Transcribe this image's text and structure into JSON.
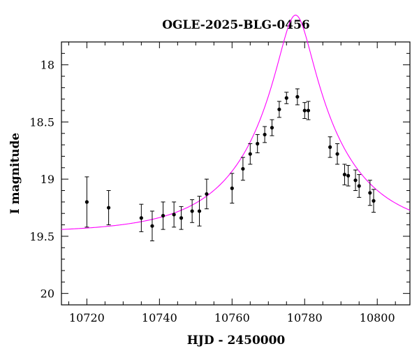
{
  "chart_data": {
    "type": "scatter",
    "title": "OGLE-2025-BLG-0456",
    "xlabel": "HJD - 2450000",
    "ylabel": "I magnitude",
    "xlim": [
      10713,
      10809
    ],
    "ylim": [
      20.1,
      17.8
    ],
    "y_inverted": true,
    "xticks": [
      10720,
      10740,
      10760,
      10780,
      10800
    ],
    "yticks": [
      18,
      18.5,
      19,
      19.5,
      20
    ],
    "ytick_labels": [
      "18",
      "18.5",
      "19",
      "19.5",
      "20"
    ],
    "grid": false,
    "series": [
      {
        "kind": "points-with-errorbars",
        "color": "#000000",
        "points": [
          {
            "x": 10720,
            "y": 19.2,
            "err": 0.22
          },
          {
            "x": 10726,
            "y": 19.25,
            "err": 0.15
          },
          {
            "x": 10735,
            "y": 19.34,
            "err": 0.12
          },
          {
            "x": 10738,
            "y": 19.41,
            "err": 0.13
          },
          {
            "x": 10741,
            "y": 19.32,
            "err": 0.12
          },
          {
            "x": 10744,
            "y": 19.31,
            "err": 0.11
          },
          {
            "x": 10746,
            "y": 19.34,
            "err": 0.1
          },
          {
            "x": 10749,
            "y": 19.28,
            "err": 0.1
          },
          {
            "x": 10751,
            "y": 19.28,
            "err": 0.13
          },
          {
            "x": 10753,
            "y": 19.13,
            "err": 0.13
          },
          {
            "x": 10760,
            "y": 19.08,
            "err": 0.13
          },
          {
            "x": 10763,
            "y": 18.91,
            "err": 0.1
          },
          {
            "x": 10765,
            "y": 18.78,
            "err": 0.09
          },
          {
            "x": 10767,
            "y": 18.69,
            "err": 0.08
          },
          {
            "x": 10769,
            "y": 18.61,
            "err": 0.07
          },
          {
            "x": 10771,
            "y": 18.55,
            "err": 0.07
          },
          {
            "x": 10773,
            "y": 18.39,
            "err": 0.07
          },
          {
            "x": 10775,
            "y": 18.29,
            "err": 0.05
          },
          {
            "x": 10778,
            "y": 18.28,
            "err": 0.07
          },
          {
            "x": 10780,
            "y": 18.4,
            "err": 0.07
          },
          {
            "x": 10781,
            "y": 18.4,
            "err": 0.08
          },
          {
            "x": 10787,
            "y": 18.72,
            "err": 0.09
          },
          {
            "x": 10789,
            "y": 18.78,
            "err": 0.09
          },
          {
            "x": 10791,
            "y": 18.96,
            "err": 0.09
          },
          {
            "x": 10792,
            "y": 18.97,
            "err": 0.09
          },
          {
            "x": 10794,
            "y": 19.01,
            "err": 0.09
          },
          {
            "x": 10795,
            "y": 19.06,
            "err": 0.1
          },
          {
            "x": 10798,
            "y": 19.12,
            "err": 0.11
          },
          {
            "x": 10799,
            "y": 19.19,
            "err": 0.1
          }
        ]
      },
      {
        "kind": "model-curve",
        "color": "#ff00ff",
        "model": "paczynski",
        "t0": 10777.5,
        "tE": 25,
        "u0": 0.175,
        "baseline_mag": 19.47
      }
    ]
  }
}
